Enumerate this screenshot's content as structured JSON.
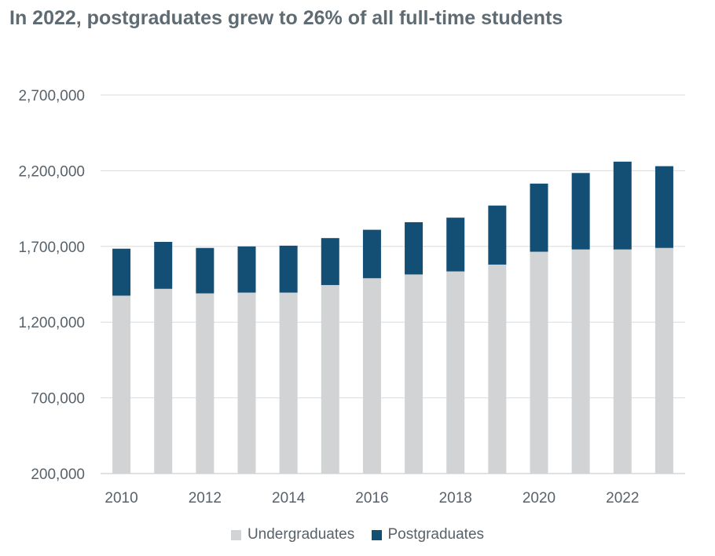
{
  "chart_data": {
    "type": "bar",
    "stacked": true,
    "title": "In 2022, postgraduates grew to 26% of all full-time students",
    "xlabel": "",
    "ylabel": "",
    "categories": [
      "2010",
      "2011",
      "2012",
      "2013",
      "2014",
      "2015",
      "2016",
      "2017",
      "2018",
      "2019",
      "2020",
      "2021",
      "2022",
      "2023"
    ],
    "x_tick_labels": [
      "2010",
      "2012",
      "2014",
      "2016",
      "2018",
      "2020",
      "2022"
    ],
    "y_tick_labels": [
      "2,700,000",
      "2,200,000",
      "1,700,000",
      "1,200,000",
      "700,000",
      "200,000"
    ],
    "y_ticks": [
      2700000,
      2200000,
      1700000,
      1200000,
      700000,
      200000
    ],
    "ylim": [
      200000,
      2700000
    ],
    "grid": true,
    "legend_position": "bottom",
    "series": [
      {
        "name": "Undergraduates",
        "color": "#d1d3d4",
        "values": [
          1375000,
          1420000,
          1390000,
          1395000,
          1395000,
          1445000,
          1490000,
          1515000,
          1535000,
          1580000,
          1665000,
          1680000,
          1680000,
          1690000
        ]
      },
      {
        "name": "Postgraduates",
        "color": "#134e75",
        "values": [
          310000,
          310000,
          300000,
          305000,
          310000,
          310000,
          320000,
          345000,
          355000,
          390000,
          450000,
          505000,
          580000,
          540000
        ]
      }
    ]
  }
}
